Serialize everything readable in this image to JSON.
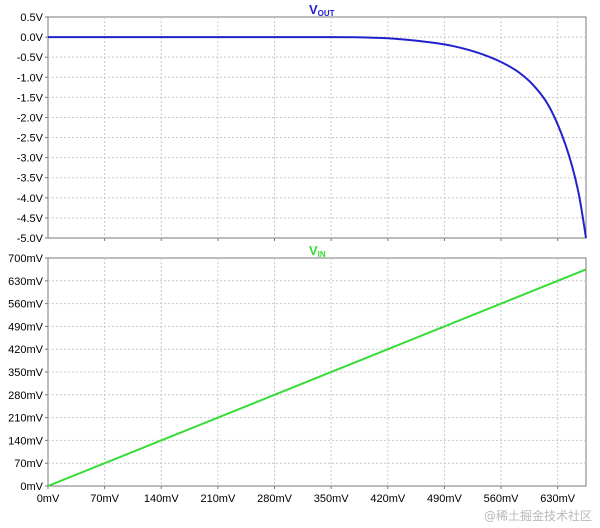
{
  "chart_data": [
    {
      "type": "line",
      "title": "V",
      "title_subscript": "OUT",
      "color": "#2222cc",
      "xlim": [
        0,
        665
      ],
      "ylim": [
        -5.0,
        0.5
      ],
      "yticks": [
        0.5,
        0.0,
        -0.5,
        -1.0,
        -1.5,
        -2.0,
        -2.5,
        -3.0,
        -3.5,
        -4.0,
        -4.5,
        -5.0
      ],
      "ytick_labels": [
        "0.5V",
        "0.0V",
        "-0.5V",
        "-1.0V",
        "-1.5V",
        "-2.0V",
        "-2.5V",
        "-3.0V",
        "-3.5V",
        "-4.0V",
        "-4.5V",
        "-5.0V"
      ],
      "xticks": [
        70,
        140,
        210,
        280,
        350,
        420,
        490,
        560,
        630
      ],
      "grid": true,
      "series": [
        {
          "x": [
            0,
            100,
            200,
            300,
            350,
            380,
            400,
            420,
            440,
            460,
            480,
            500,
            520,
            540,
            560,
            580,
            600,
            620,
            640,
            655,
            665
          ],
          "y": [
            0,
            0,
            0,
            0,
            0,
            -0.005,
            -0.015,
            -0.03,
            -0.06,
            -0.1,
            -0.15,
            -0.22,
            -0.32,
            -0.45,
            -0.62,
            -0.85,
            -1.2,
            -1.75,
            -2.7,
            -3.8,
            -5.0
          ]
        }
      ]
    },
    {
      "type": "line",
      "title": "V",
      "title_subscript": "IN",
      "color": "#33dd33",
      "xlim": [
        0,
        665
      ],
      "ylim": [
        0,
        700
      ],
      "yticks": [
        0,
        70,
        140,
        210,
        280,
        350,
        420,
        490,
        560,
        630,
        700
      ],
      "ytick_labels": [
        "0mV",
        "70mV",
        "140mV",
        "210mV",
        "280mV",
        "350mV",
        "420mV",
        "490mV",
        "560mV",
        "630mV",
        "700mV"
      ],
      "xticks": [
        0,
        70,
        140,
        210,
        280,
        350,
        420,
        490,
        560,
        630
      ],
      "xtick_labels": [
        "0mV",
        "70mV",
        "140mV",
        "210mV",
        "280mV",
        "350mV",
        "420mV",
        "490mV",
        "560mV",
        "630mV"
      ],
      "grid": true,
      "series": [
        {
          "x": [
            0,
            665
          ],
          "y": [
            0,
            665
          ]
        }
      ]
    }
  ],
  "watermark": "@稀土掘金技术社区"
}
